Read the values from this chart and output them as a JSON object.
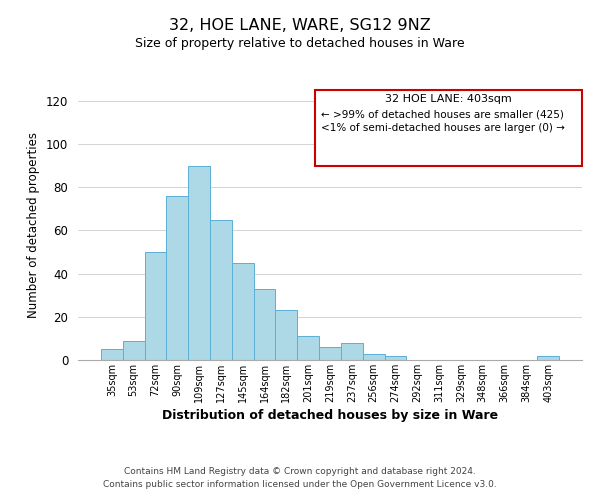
{
  "title": "32, HOE LANE, WARE, SG12 9NZ",
  "subtitle": "Size of property relative to detached houses in Ware",
  "xlabel": "Distribution of detached houses by size in Ware",
  "ylabel": "Number of detached properties",
  "bar_labels": [
    "35sqm",
    "53sqm",
    "72sqm",
    "90sqm",
    "109sqm",
    "127sqm",
    "145sqm",
    "164sqm",
    "182sqm",
    "201sqm",
    "219sqm",
    "237sqm",
    "256sqm",
    "274sqm",
    "292sqm",
    "311sqm",
    "329sqm",
    "348sqm",
    "366sqm",
    "384sqm",
    "403sqm"
  ],
  "bar_values": [
    5,
    9,
    50,
    76,
    90,
    65,
    45,
    33,
    23,
    11,
    6,
    8,
    3,
    2,
    0,
    0,
    0,
    0,
    0,
    0,
    2
  ],
  "bar_color": "#add8e6",
  "bar_edge_color": "#5bafd6",
  "ylim": [
    0,
    125
  ],
  "yticks": [
    0,
    20,
    40,
    60,
    80,
    100,
    120
  ],
  "legend_title": "32 HOE LANE: 403sqm",
  "legend_line1": "← >99% of detached houses are smaller (425)",
  "legend_line2": "<1% of semi-detached houses are larger (0) →",
  "legend_box_color": "#ffffff",
  "legend_box_edge_color": "#cc0000",
  "footer_line1": "Contains HM Land Registry data © Crown copyright and database right 2024.",
  "footer_line2": "Contains public sector information licensed under the Open Government Licence v3.0.",
  "background_color": "#ffffff",
  "grid_color": "#cccccc"
}
